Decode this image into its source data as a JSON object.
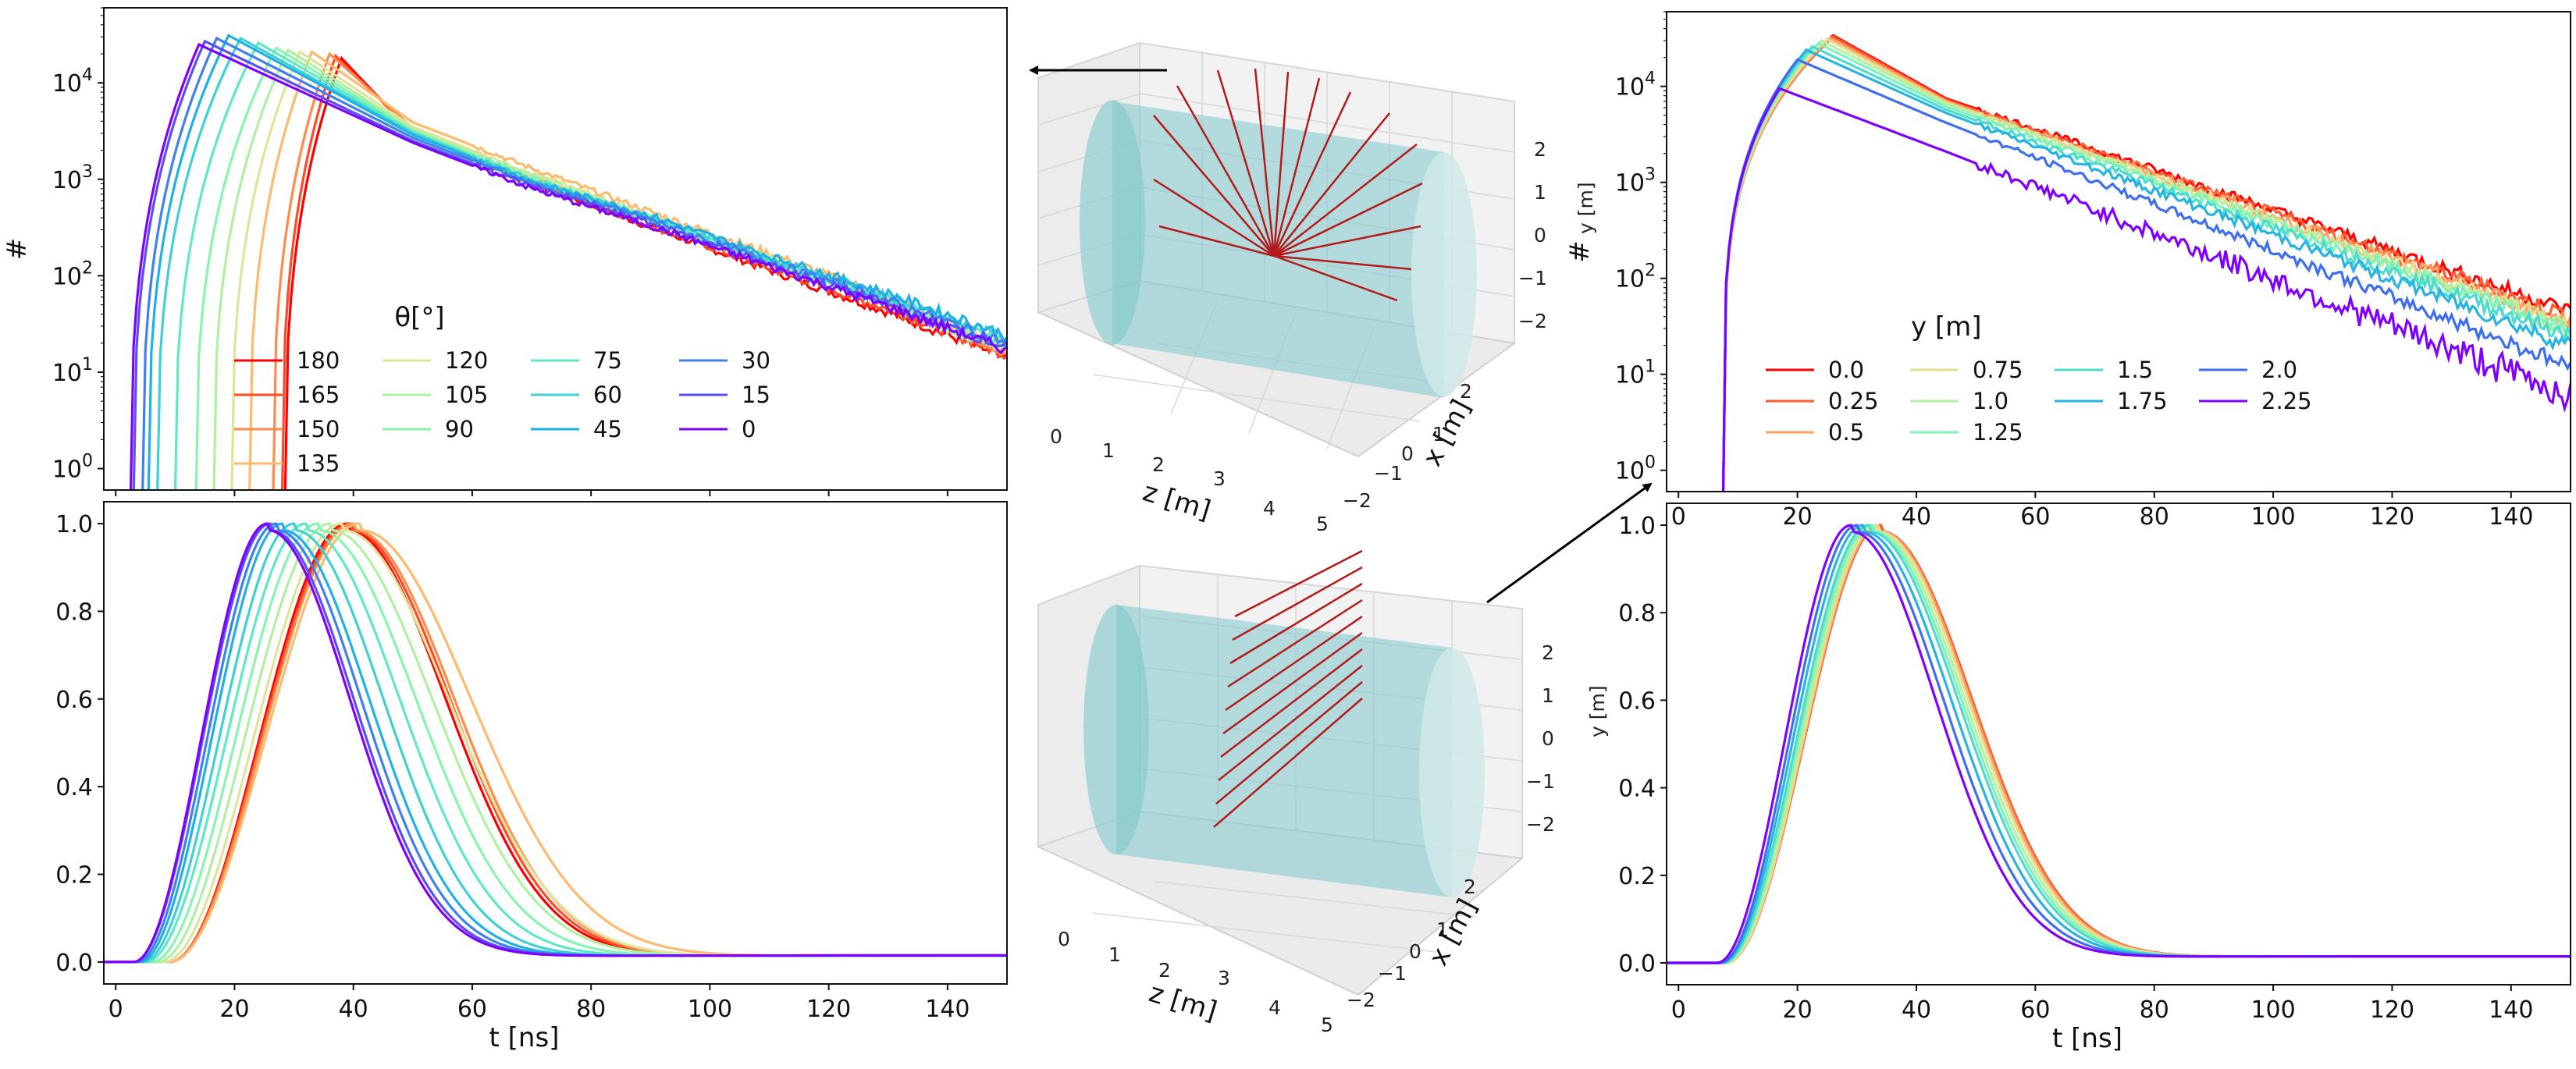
{
  "chart_data": [
    {
      "id": "theta_hist_log",
      "type": "line",
      "yscale": "log",
      "xlim": [
        -2,
        150
      ],
      "ylim": [
        0.6,
        60000
      ],
      "xticks": [
        0,
        20,
        40,
        60,
        80,
        100,
        120,
        140
      ],
      "xtick_labels_visible": false,
      "yticks": [
        1,
        10,
        100,
        1000,
        10000
      ],
      "ytick_labels": [
        "10^0",
        "10^1",
        "10^2",
        "10^3",
        "10^4"
      ],
      "ylabel": "#",
      "legend_title": "θ[°]",
      "legend_ncol": 4,
      "series": [
        {
          "name": "180",
          "color": "#ff0000",
          "peak_t": 38,
          "peak": 18000,
          "rise": 9.5,
          "tail": [
            3000,
            900,
            320,
            115,
            42,
            14
          ]
        },
        {
          "name": "165",
          "color": "#ff4a25",
          "peak_t": 37,
          "peak": 19000,
          "rise": 9.0,
          "tail": [
            3100,
            950,
            330,
            120,
            45,
            15
          ]
        },
        {
          "name": "150",
          "color": "#ff8a4a",
          "peak_t": 36,
          "peak": 20000,
          "rise": 9.5,
          "tail": [
            3400,
            1050,
            380,
            135,
            50,
            16
          ]
        },
        {
          "name": "135",
          "color": "#ffb96d",
          "peak_t": 33,
          "peak": 21000,
          "rise": 10.5,
          "tail": [
            3900,
            1300,
            460,
            170,
            60,
            18
          ]
        },
        {
          "name": "120",
          "color": "#e0e39a",
          "peak_t": 31,
          "peak": 21000,
          "rise": 11.5,
          "tail": [
            3500,
            1150,
            420,
            150,
            55,
            17
          ]
        },
        {
          "name": "105",
          "color": "#b0f0a3",
          "peak_t": 29,
          "peak": 22000,
          "rise": 12.5,
          "tail": [
            3300,
            1100,
            400,
            140,
            52,
            16
          ]
        },
        {
          "name": "90",
          "color": "#87f5b0",
          "peak_t": 27,
          "peak": 23000,
          "rise": 13.5,
          "tail": [
            3200,
            1050,
            390,
            140,
            55,
            18
          ]
        },
        {
          "name": "75",
          "color": "#5fe8c4",
          "peak_t": 24,
          "peak": 26000,
          "rise": 14.0,
          "tail": [
            3100,
            1000,
            390,
            145,
            58,
            20
          ]
        },
        {
          "name": "60",
          "color": "#3fd0d6",
          "peak_t": 21,
          "peak": 29000,
          "rise": 14.0,
          "tail": [
            3000,
            980,
            400,
            150,
            60,
            22
          ]
        },
        {
          "name": "45",
          "color": "#1fb0e6",
          "peak_t": 19,
          "peak": 31000,
          "rise": 13.5,
          "tail": [
            2900,
            960,
            420,
            160,
            65,
            24
          ]
        },
        {
          "name": "30",
          "color": "#3f7ff0",
          "peak_t": 17,
          "peak": 29000,
          "rise": 12.5,
          "tail": [
            2700,
            900,
            380,
            140,
            55,
            20
          ]
        },
        {
          "name": "15",
          "color": "#5a4ef5",
          "peak_t": 15,
          "peak": 27000,
          "rise": 12.0,
          "tail": [
            2500,
            850,
            350,
            130,
            50,
            18
          ]
        },
        {
          "name": "0",
          "color": "#7f00ff",
          "peak_t": 14,
          "peak": 25000,
          "rise": 11.5,
          "tail": [
            2400,
            800,
            330,
            125,
            48,
            17
          ]
        }
      ]
    },
    {
      "id": "theta_norm",
      "type": "line",
      "xlim": [
        -2,
        150
      ],
      "ylim": [
        -0.05,
        1.05
      ],
      "xticks": [
        0,
        20,
        40,
        60,
        80,
        100,
        120,
        140
      ],
      "yticks": [
        0.0,
        0.2,
        0.4,
        0.6,
        0.8,
        1.0
      ],
      "ytick_labels": [
        "0.0",
        "0.2",
        "0.4",
        "0.6",
        "0.8",
        "1.0"
      ],
      "xlabel": "t [ns]",
      "series": [
        {
          "name": "180",
          "color": "#ff0000",
          "t0": 9,
          "peak_t": 39,
          "decay": 22
        },
        {
          "name": "165",
          "color": "#ff4a25",
          "t0": 9,
          "peak_t": 39.5,
          "decay": 22.3
        },
        {
          "name": "150",
          "color": "#ff8a4a",
          "t0": 9,
          "peak_t": 40,
          "decay": 22.6
        },
        {
          "name": "135",
          "color": "#ffb96d",
          "t0": 9,
          "peak_t": 41,
          "decay": 25
        },
        {
          "name": "120",
          "color": "#e0e39a",
          "t0": 8,
          "peak_t": 38,
          "decay": 24
        },
        {
          "name": "105",
          "color": "#b0f0a3",
          "t0": 7,
          "peak_t": 36,
          "decay": 23
        },
        {
          "name": "90",
          "color": "#87f5b0",
          "t0": 6,
          "peak_t": 34,
          "decay": 22
        },
        {
          "name": "75",
          "color": "#5fe8c4",
          "t0": 5,
          "peak_t": 32,
          "decay": 21
        },
        {
          "name": "60",
          "color": "#3fd0d6",
          "t0": 4.5,
          "peak_t": 30,
          "decay": 20
        },
        {
          "name": "45",
          "color": "#1fb0e6",
          "t0": 4,
          "peak_t": 28,
          "decay": 19.5
        },
        {
          "name": "30",
          "color": "#3f7ff0",
          "t0": 3.5,
          "peak_t": 27,
          "decay": 19
        },
        {
          "name": "15",
          "color": "#5a4ef5",
          "t0": 3,
          "peak_t": 26,
          "decay": 18.7
        },
        {
          "name": "0",
          "color": "#7f00ff",
          "t0": 3,
          "peak_t": 25.5,
          "decay": 18.5
        }
      ]
    },
    {
      "id": "y_hist_log",
      "type": "line",
      "yscale": "log",
      "xlim": [
        -2,
        150
      ],
      "ylim": [
        0.6,
        60000
      ],
      "yticks": [
        1,
        10,
        100,
        1000,
        10000
      ],
      "ytick_labels": [
        "10^0",
        "10^1",
        "10^2",
        "10^3",
        "10^4"
      ],
      "ylabel": "#",
      "legend_title": "y [m]",
      "legend_ncol": 4,
      "series": [
        {
          "name": "0.0",
          "color": "#ff0000",
          "peak_t": 26,
          "peak": 34000,
          "end": 45
        },
        {
          "name": "0.25",
          "color": "#ff5a30",
          "peak_t": 26,
          "peak": 33000,
          "end": 40
        },
        {
          "name": "0.5",
          "color": "#ffa060",
          "peak_t": 25.5,
          "peak": 32000,
          "end": 35
        },
        {
          "name": "0.75",
          "color": "#e6dd8e",
          "peak_t": 25,
          "peak": 31000,
          "end": 32
        },
        {
          "name": "1.0",
          "color": "#b3f2a0",
          "peak_t": 24,
          "peak": 30000,
          "end": 30
        },
        {
          "name": "1.25",
          "color": "#7ff1bb",
          "peak_t": 23.5,
          "peak": 28000,
          "end": 28
        },
        {
          "name": "1.5",
          "color": "#4fdad0",
          "peak_t": 22.5,
          "peak": 26000,
          "end": 25
        },
        {
          "name": "1.75",
          "color": "#27b4e2",
          "peak_t": 21.5,
          "peak": 24000,
          "end": 20
        },
        {
          "name": "2.0",
          "color": "#3f6ff0",
          "peak_t": 20,
          "peak": 19000,
          "end": 12
        },
        {
          "name": "2.25",
          "color": "#7f00ff",
          "peak_t": 17,
          "peak": 9500,
          "end": 6
        }
      ]
    },
    {
      "id": "y_norm",
      "type": "line",
      "xlim": [
        -2,
        150
      ],
      "ylim": [
        -0.05,
        1.05
      ],
      "xticks": [
        0,
        20,
        40,
        60,
        80,
        100,
        120,
        140
      ],
      "yticks": [
        0.0,
        0.2,
        0.4,
        0.6,
        0.8,
        1.0
      ],
      "ytick_labels": [
        "0.0",
        "0.2",
        "0.4",
        "0.6",
        "0.8",
        "1.0"
      ],
      "xlabel": "t [ns]",
      "series": [
        {
          "name": "0.0",
          "color": "#ff0000",
          "t0": 8,
          "peak_t": 34,
          "decay": 20.5
        },
        {
          "name": "0.25",
          "color": "#ff5a30",
          "t0": 8,
          "peak_t": 34,
          "decay": 20.5
        },
        {
          "name": "0.5",
          "color": "#ffa060",
          "t0": 8,
          "peak_t": 33.8,
          "decay": 20.4
        },
        {
          "name": "0.75",
          "color": "#e6dd8e",
          "t0": 8,
          "peak_t": 33.5,
          "decay": 20.3
        },
        {
          "name": "1.0",
          "color": "#b3f2a0",
          "t0": 7.8,
          "peak_t": 33,
          "decay": 20.2
        },
        {
          "name": "1.25",
          "color": "#7ff1bb",
          "t0": 7.6,
          "peak_t": 32.5,
          "decay": 20.1
        },
        {
          "name": "1.5",
          "color": "#4fdad0",
          "t0": 7.4,
          "peak_t": 32,
          "decay": 20
        },
        {
          "name": "1.75",
          "color": "#27b4e2",
          "t0": 7.2,
          "peak_t": 31,
          "decay": 19.8
        },
        {
          "name": "2.0",
          "color": "#3f6ff0",
          "t0": 7,
          "peak_t": 30,
          "decay": 19.4
        },
        {
          "name": "2.25",
          "color": "#7f00ff",
          "t0": 6.5,
          "peak_t": 29,
          "decay": 19
        }
      ]
    }
  ],
  "detector_views": [
    {
      "id": "angle_scan_3d",
      "description_type": "3d",
      "z_label": "z [m]",
      "x_label": "x [m]",
      "y_label": "y [m]",
      "z_ticks": [
        "0",
        "1",
        "2",
        "3",
        "4",
        "5"
      ],
      "x_ticks": [
        "2",
        "1",
        "0",
        "−1",
        "−2"
      ],
      "y_ticks": [
        "2",
        "1",
        "0",
        "−1",
        "−2"
      ],
      "cylinder_color": "#80c9cc",
      "track_color": "#b31b1b"
    },
    {
      "id": "height_scan_3d",
      "description_type": "3d",
      "z_label": "z [m]",
      "x_label": "x [m]",
      "y_label": "y [m]",
      "z_ticks": [
        "0",
        "1",
        "2",
        "3",
        "4",
        "5"
      ],
      "x_ticks": [
        "2",
        "1",
        "0",
        "−1",
        "−2"
      ],
      "y_ticks": [
        "2",
        "1",
        "0",
        "−1",
        "−2"
      ],
      "cylinder_color": "#80c9cc",
      "track_color": "#b31b1b"
    }
  ]
}
